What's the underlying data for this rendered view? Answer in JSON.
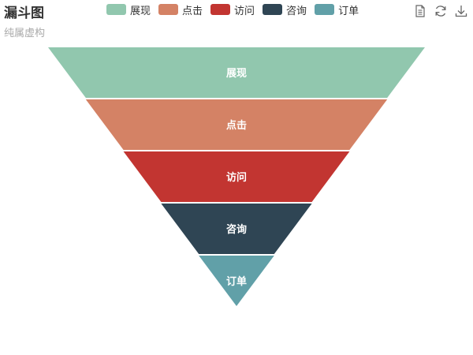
{
  "title": "漏斗图",
  "subtitle": "纯属虚构",
  "toolbox": {
    "items": [
      {
        "icon": "data-view-icon"
      },
      {
        "icon": "restore-icon"
      },
      {
        "icon": "save-image-icon"
      }
    ]
  },
  "colors": {
    "label_text": "#ffffff",
    "text": "#333333",
    "subtext": "#aaaaaa",
    "icon": "#666666"
  },
  "chart_data": {
    "type": "funnel",
    "title": "漏斗图",
    "subtitle": "纯属虚构",
    "sort": "descending",
    "max": 100,
    "legend_position": "top-center",
    "categories": [
      "展现",
      "点击",
      "访问",
      "咨询",
      "订单"
    ],
    "values": [
      100,
      80,
      60,
      40,
      20
    ],
    "colors": [
      "#91c7ae",
      "#d48265",
      "#c23531",
      "#2f4554",
      "#61a0a8"
    ],
    "label_position": "inside"
  }
}
